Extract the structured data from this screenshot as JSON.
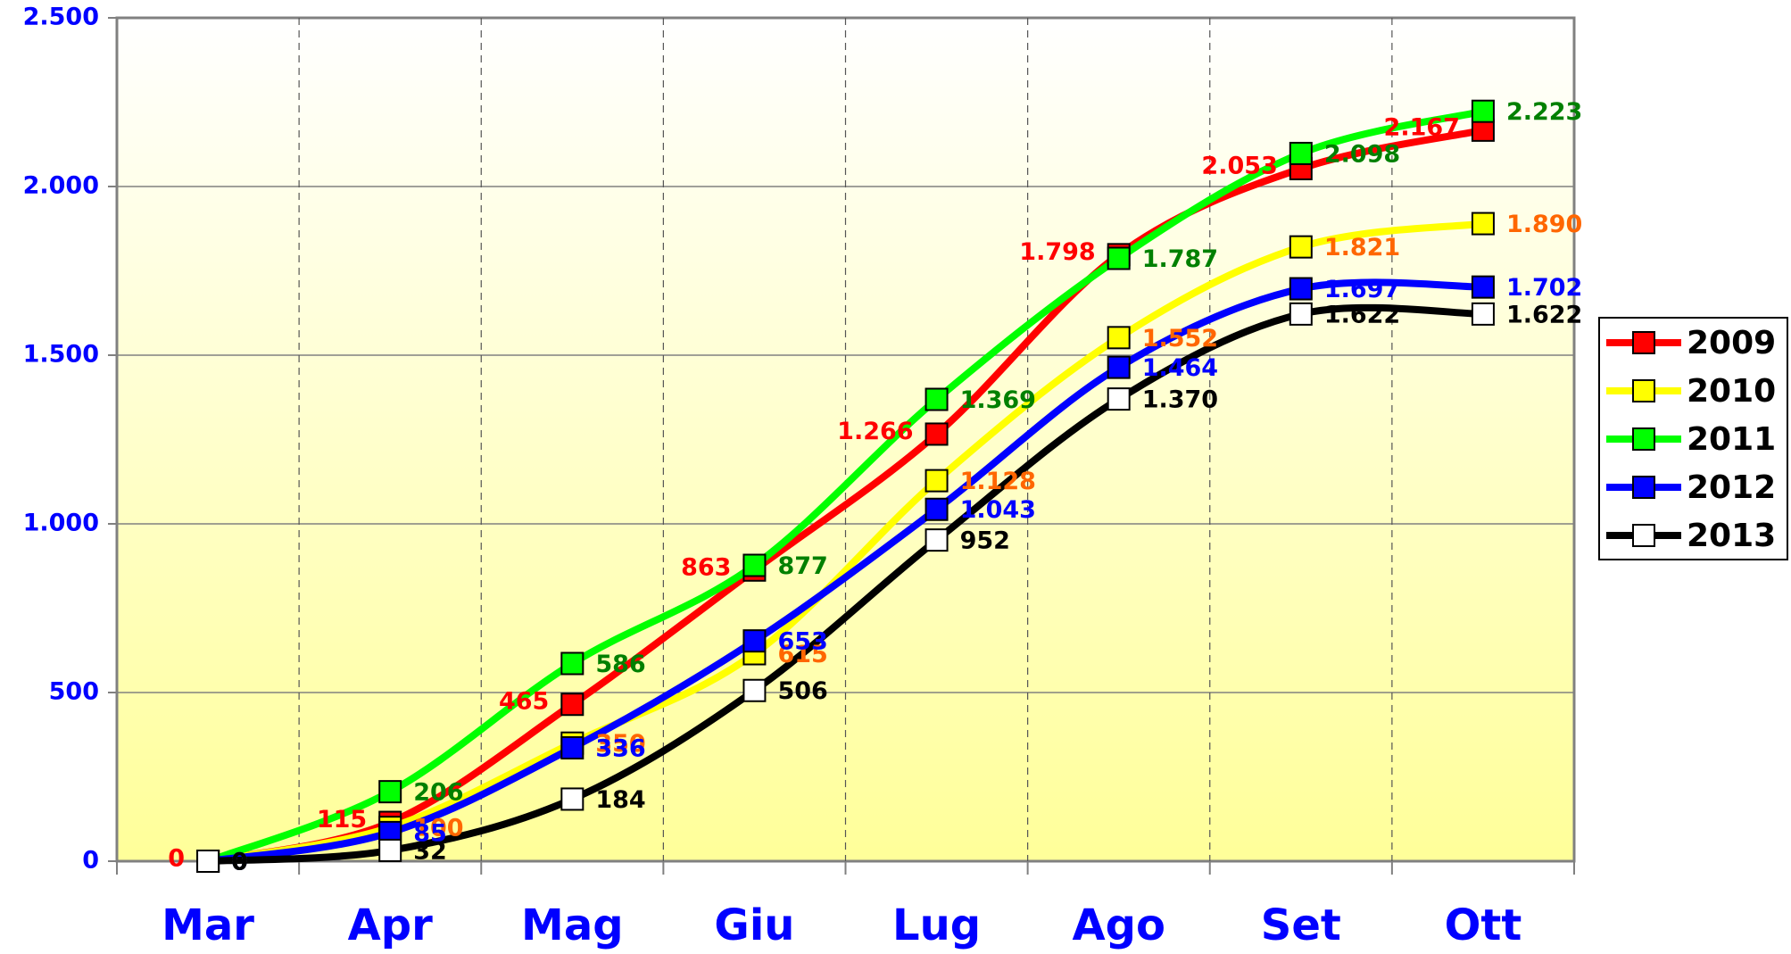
{
  "chart_data": {
    "type": "line",
    "categories": [
      "Mar",
      "Apr",
      "Mag",
      "Giu",
      "Lug",
      "Ago",
      "Set",
      "Ott"
    ],
    "ylim": [
      0,
      2500
    ],
    "yticks": [
      0,
      500,
      {
        "value": 1000,
        "label": "1.000"
      },
      {
        "value": 1500,
        "label": "1.500"
      },
      {
        "value": 2000,
        "label": "2.000"
      },
      {
        "value": 2500,
        "label": "2.500"
      }
    ],
    "grid": true,
    "legend": "right",
    "series": [
      {
        "name": "2009",
        "color": "#ff0000",
        "label_color": "#ff0000",
        "values": [
          0,
          115,
          465,
          863,
          1266,
          1798,
          2053,
          2167
        ],
        "value_labels": [
          "0",
          "115",
          "465",
          "863",
          "1.266",
          "1.798",
          "2.053",
          "2.167"
        ]
      },
      {
        "name": "2010",
        "color": "#ffff00",
        "label_color": "#ff6600",
        "values": [
          0,
          100,
          350,
          615,
          1128,
          1552,
          1821,
          1890
        ],
        "value_labels": [
          "0",
          "100",
          "350",
          "615",
          "1.128",
          "1.552",
          "1.821",
          "1.890"
        ]
      },
      {
        "name": "2011",
        "color": "#00ff00",
        "label_color": "#008000",
        "values": [
          0,
          206,
          586,
          877,
          1369,
          1787,
          2098,
          2223
        ],
        "value_labels": [
          "0",
          "206",
          "586",
          "877",
          "1.369",
          "1.787",
          "2.098",
          "2.223"
        ]
      },
      {
        "name": "2012",
        "color": "#0000ff",
        "label_color": "#0000ff",
        "values": [
          0,
          85,
          336,
          653,
          1043,
          1464,
          1697,
          1702
        ],
        "value_labels": [
          "0",
          "85",
          "336",
          "653",
          "1.043",
          "1.464",
          "1.697",
          "1.702"
        ]
      },
      {
        "name": "2013",
        "color": "#000000",
        "label_color": "#000000",
        "marker": "#ffffff",
        "values": [
          0,
          32,
          184,
          506,
          952,
          1370,
          1622,
          1622
        ],
        "value_labels": [
          "0",
          "32",
          "184",
          "506",
          "952",
          "1.370",
          "1.622",
          "1.622"
        ]
      }
    ]
  }
}
